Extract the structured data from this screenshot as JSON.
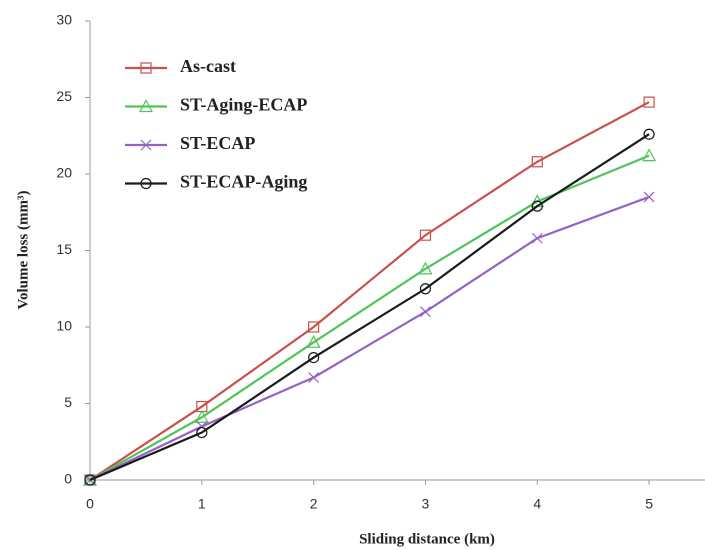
{
  "chart_data": {
    "type": "line",
    "x_label": "Sliding distance (km)",
    "y_label": "Volume loss (mm³)",
    "x": [
      0,
      1,
      2,
      3,
      4,
      5
    ],
    "xlim": [
      0,
      5.5
    ],
    "xticks": [
      0,
      1,
      2,
      3,
      4,
      5
    ],
    "ylim": [
      0,
      30
    ],
    "yticks": [
      0,
      5,
      10,
      15,
      20,
      25,
      30
    ],
    "grid": false,
    "legend": "upper left",
    "series": [
      {
        "name": "As-cast",
        "color": "#c9504c",
        "marker": "square",
        "values": [
          0,
          4.8,
          10,
          16,
          20.8,
          24.7
        ]
      },
      {
        "name": "ST-Aging-ECAP",
        "color": "#4fc45a",
        "marker": "triangle",
        "values": [
          0,
          4.1,
          9,
          13.8,
          18.2,
          21.2
        ]
      },
      {
        "name": " ST-ECAP",
        "color": "#9461c4",
        "marker": "x",
        "values": [
          0,
          3.5,
          6.7,
          11,
          15.8,
          18.5
        ]
      },
      {
        "name": "ST-ECAP-Aging",
        "color": "#1a1a1a",
        "marker": "circle",
        "values": [
          0,
          3.1,
          8,
          12.5,
          17.9,
          22.6
        ]
      }
    ]
  }
}
